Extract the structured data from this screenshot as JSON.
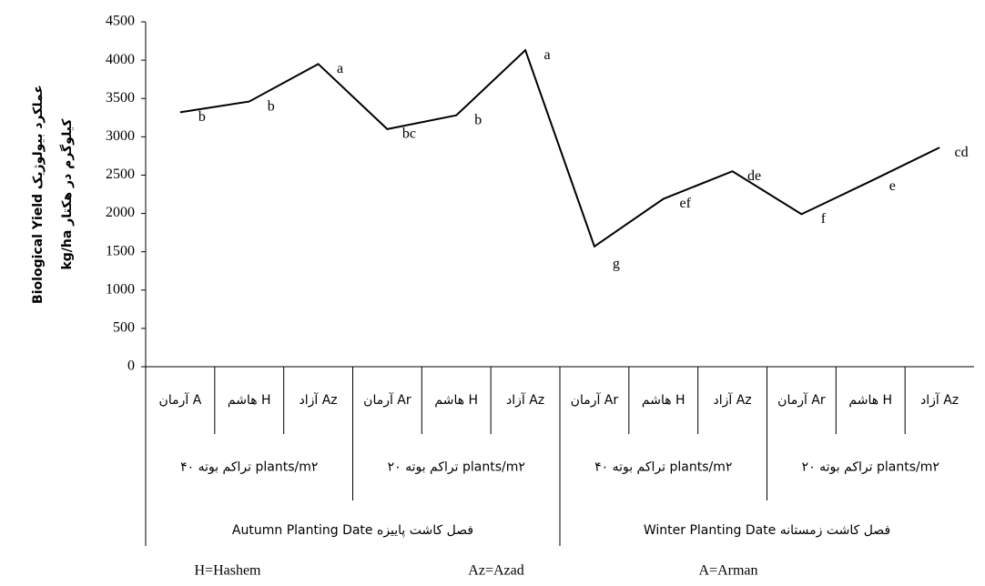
{
  "chart_data": {
    "type": "line",
    "ylabel": [
      "Biological Yield عملکرد بیولوژیک",
      "kg/ha کیلوگرم در هکتار"
    ],
    "categories": [
      "آرمان A",
      "هاشم H",
      "آزاد Az",
      "آرمان Ar",
      "هاشم H",
      "آزاد Az",
      "آرمان Ar",
      "هاشم H",
      "آزاد Az",
      "آرمان Ar",
      "هاشم H",
      "آزاد Az"
    ],
    "category_levels": [
      [
        "تراکم بوته ۴۰ plants/m۲",
        "تراکم بوته ۲۰ plants/m۲",
        "تراکم بوته ۴۰ plants/m۲",
        "تراکم بوته ۲۰ plants/m۲"
      ],
      [
        "Autumn Planting Date فصل کاشت پاییزه",
        "Winter Planting Date فصل کاشت زمستانه"
      ]
    ],
    "series": [
      {
        "color": "#000000",
        "values": [
          3320,
          3460,
          3950,
          3100,
          3280,
          4130,
          1570,
          2190,
          2550,
          1990,
          2420,
          2860
        ],
        "value_labels": [
          "b",
          "b",
          "a",
          "bc",
          "b",
          "a",
          "g",
          "ef",
          "de",
          "f",
          "e",
          "cd"
        ]
      }
    ],
    "ylim": [
      0,
      4500
    ],
    "yticks": [
      0,
      500,
      1000,
      1500,
      2000,
      2500,
      3000,
      3500,
      4000,
      4500
    ],
    "footnote": [
      "H=Hashem",
      "Az=Azad",
      "A=Arman"
    ]
  }
}
